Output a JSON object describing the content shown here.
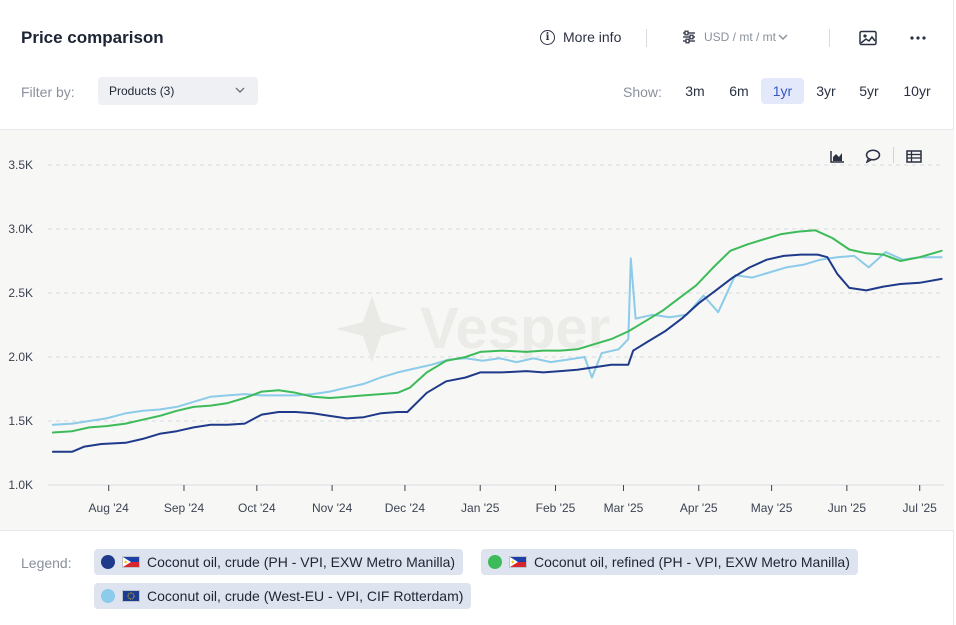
{
  "header": {
    "title": "Price comparison",
    "more_info_label": "More info",
    "units_label": "USD / mt / mt"
  },
  "filters": {
    "filter_label": "Filter by:",
    "products_value": "Products (3)",
    "show_label": "Show:",
    "ranges": [
      "3m",
      "6m",
      "1yr",
      "3yr",
      "5yr",
      "10yr"
    ],
    "active_range": "1yr"
  },
  "watermark": "Vesper",
  "legend": {
    "label": "Legend:",
    "items": [
      {
        "name": "Coconut oil, crude (PH - VPI, EXW Metro Manilla)",
        "color": "#1f3a8a",
        "flag": "ph-flag"
      },
      {
        "name": "Coconut oil, refined (PH - VPI, EXW Metro Manilla)",
        "color": "#3dbb5a",
        "flag": "ph-flag"
      },
      {
        "name": "Coconut oil, crude (West-EU - VPI, CIF Rotterdam)",
        "color": "#8ccbea",
        "flag": "eu-flag"
      }
    ]
  },
  "chart_data": {
    "type": "line",
    "x_ticks": [
      "Aug '24",
      "Sep '24",
      "Oct '24",
      "Nov '24",
      "Dec '24",
      "Jan '25",
      "Feb '25",
      "Mar '25",
      "Apr '25",
      "May '25",
      "Jun '25",
      "Jul '25"
    ],
    "y_ticks": [
      "1.0K",
      "1.5K",
      "2.0K",
      "2.5K",
      "3.0K",
      "3.5K"
    ],
    "ylim": [
      1000,
      3500
    ],
    "xlim": [
      "2024-07-07",
      "2025-07-11"
    ],
    "grid": "horizontal dashed",
    "series": [
      {
        "name": "Coconut oil, crude (PH - VPI, EXW Metro Manilla)",
        "color": "#1f3a8a",
        "points": [
          [
            "2024-07-09",
            1260
          ],
          [
            "2024-07-17",
            1260
          ],
          [
            "2024-07-22",
            1300
          ],
          [
            "2024-07-29",
            1320
          ],
          [
            "2024-08-08",
            1330
          ],
          [
            "2024-08-15",
            1360
          ],
          [
            "2024-08-22",
            1400
          ],
          [
            "2024-08-29",
            1420
          ],
          [
            "2024-09-05",
            1450
          ],
          [
            "2024-09-12",
            1470
          ],
          [
            "2024-09-19",
            1470
          ],
          [
            "2024-09-26",
            1480
          ],
          [
            "2024-10-03",
            1550
          ],
          [
            "2024-10-10",
            1570
          ],
          [
            "2024-10-17",
            1570
          ],
          [
            "2024-10-24",
            1560
          ],
          [
            "2024-10-31",
            1540
          ],
          [
            "2024-11-07",
            1520
          ],
          [
            "2024-11-14",
            1530
          ],
          [
            "2024-11-21",
            1560
          ],
          [
            "2024-11-28",
            1570
          ],
          [
            "2024-12-02",
            1570
          ],
          [
            "2024-12-10",
            1720
          ],
          [
            "2024-12-18",
            1810
          ],
          [
            "2024-12-26",
            1840
          ],
          [
            "2025-01-01",
            1880
          ],
          [
            "2025-01-10",
            1880
          ],
          [
            "2025-01-20",
            1890
          ],
          [
            "2025-01-27",
            1880
          ],
          [
            "2025-02-03",
            1890
          ],
          [
            "2025-02-10",
            1900
          ],
          [
            "2025-02-17",
            1920
          ],
          [
            "2025-02-24",
            1940
          ],
          [
            "2025-03-03",
            1940
          ],
          [
            "2025-03-05",
            2050
          ],
          [
            "2025-03-11",
            2120
          ],
          [
            "2025-03-18",
            2200
          ],
          [
            "2025-03-25",
            2300
          ],
          [
            "2025-04-01",
            2420
          ],
          [
            "2025-04-08",
            2520
          ],
          [
            "2025-04-15",
            2620
          ],
          [
            "2025-04-22",
            2700
          ],
          [
            "2025-04-29",
            2760
          ],
          [
            "2025-05-06",
            2790
          ],
          [
            "2025-05-13",
            2800
          ],
          [
            "2025-05-20",
            2800
          ],
          [
            "2025-05-24",
            2780
          ],
          [
            "2025-05-28",
            2650
          ],
          [
            "2025-06-02",
            2540
          ],
          [
            "2025-06-09",
            2520
          ],
          [
            "2025-06-16",
            2550
          ],
          [
            "2025-06-23",
            2570
          ],
          [
            "2025-07-01",
            2580
          ],
          [
            "2025-07-10",
            2610
          ]
        ]
      },
      {
        "name": "Coconut oil, refined (PH - VPI, EXW Metro Manilla)",
        "color": "#3dbb5a",
        "points": [
          [
            "2024-07-09",
            1410
          ],
          [
            "2024-07-17",
            1420
          ],
          [
            "2024-07-24",
            1450
          ],
          [
            "2024-07-31",
            1460
          ],
          [
            "2024-08-08",
            1480
          ],
          [
            "2024-08-15",
            1510
          ],
          [
            "2024-08-22",
            1540
          ],
          [
            "2024-08-29",
            1580
          ],
          [
            "2024-09-05",
            1610
          ],
          [
            "2024-09-12",
            1620
          ],
          [
            "2024-09-19",
            1640
          ],
          [
            "2024-09-26",
            1680
          ],
          [
            "2024-10-03",
            1730
          ],
          [
            "2024-10-10",
            1740
          ],
          [
            "2024-10-17",
            1720
          ],
          [
            "2024-10-24",
            1690
          ],
          [
            "2024-10-31",
            1680
          ],
          [
            "2024-11-07",
            1690
          ],
          [
            "2024-11-14",
            1700
          ],
          [
            "2024-11-21",
            1710
          ],
          [
            "2024-11-28",
            1720
          ],
          [
            "2024-12-03",
            1760
          ],
          [
            "2024-12-10",
            1880
          ],
          [
            "2024-12-18",
            1970
          ],
          [
            "2024-12-26",
            2000
          ],
          [
            "2025-01-01",
            2040
          ],
          [
            "2025-01-10",
            2050
          ],
          [
            "2025-01-20",
            2040
          ],
          [
            "2025-01-27",
            2050
          ],
          [
            "2025-02-03",
            2050
          ],
          [
            "2025-02-10",
            2060
          ],
          [
            "2025-02-17",
            2100
          ],
          [
            "2025-02-24",
            2140
          ],
          [
            "2025-03-03",
            2200
          ],
          [
            "2025-03-10",
            2280
          ],
          [
            "2025-03-17",
            2360
          ],
          [
            "2025-03-24",
            2460
          ],
          [
            "2025-03-31",
            2560
          ],
          [
            "2025-04-07",
            2700
          ],
          [
            "2025-04-14",
            2830
          ],
          [
            "2025-04-21",
            2880
          ],
          [
            "2025-04-28",
            2920
          ],
          [
            "2025-05-05",
            2960
          ],
          [
            "2025-05-12",
            2980
          ],
          [
            "2025-05-19",
            2990
          ],
          [
            "2025-05-26",
            2930
          ],
          [
            "2025-06-02",
            2840
          ],
          [
            "2025-06-09",
            2810
          ],
          [
            "2025-06-16",
            2800
          ],
          [
            "2025-06-23",
            2750
          ],
          [
            "2025-07-01",
            2780
          ],
          [
            "2025-07-10",
            2830
          ]
        ]
      },
      {
        "name": "Coconut oil, crude (West-EU - VPI, CIF Rotterdam)",
        "color": "#8ccbea",
        "points": [
          [
            "2024-07-09",
            1470
          ],
          [
            "2024-07-17",
            1480
          ],
          [
            "2024-07-24",
            1500
          ],
          [
            "2024-07-31",
            1520
          ],
          [
            "2024-08-08",
            1560
          ],
          [
            "2024-08-15",
            1580
          ],
          [
            "2024-08-22",
            1590
          ],
          [
            "2024-08-29",
            1610
          ],
          [
            "2024-09-05",
            1650
          ],
          [
            "2024-09-12",
            1690
          ],
          [
            "2024-09-19",
            1700
          ],
          [
            "2024-09-26",
            1710
          ],
          [
            "2024-10-03",
            1700
          ],
          [
            "2024-10-10",
            1700
          ],
          [
            "2024-10-17",
            1700
          ],
          [
            "2024-10-24",
            1710
          ],
          [
            "2024-10-31",
            1730
          ],
          [
            "2024-11-07",
            1760
          ],
          [
            "2024-11-14",
            1790
          ],
          [
            "2024-11-21",
            1840
          ],
          [
            "2024-11-28",
            1880
          ],
          [
            "2024-12-05",
            1910
          ],
          [
            "2024-12-12",
            1940
          ],
          [
            "2024-12-19",
            1980
          ],
          [
            "2024-12-26",
            1990
          ],
          [
            "2025-01-02",
            1970
          ],
          [
            "2025-01-09",
            1990
          ],
          [
            "2025-01-16",
            1960
          ],
          [
            "2025-01-23",
            1990
          ],
          [
            "2025-01-30",
            1960
          ],
          [
            "2025-02-06",
            1980
          ],
          [
            "2025-02-13",
            2000
          ],
          [
            "2025-02-16",
            1840
          ],
          [
            "2025-02-20",
            2030
          ],
          [
            "2025-02-27",
            2060
          ],
          [
            "2025-03-03",
            2140
          ],
          [
            "2025-03-04",
            2770
          ],
          [
            "2025-03-06",
            2300
          ],
          [
            "2025-03-13",
            2330
          ],
          [
            "2025-03-20",
            2310
          ],
          [
            "2025-03-27",
            2330
          ],
          [
            "2025-04-03",
            2480
          ],
          [
            "2025-04-09",
            2350
          ],
          [
            "2025-04-16",
            2640
          ],
          [
            "2025-04-23",
            2620
          ],
          [
            "2025-04-30",
            2660
          ],
          [
            "2025-05-07",
            2700
          ],
          [
            "2025-05-14",
            2720
          ],
          [
            "2025-05-21",
            2760
          ],
          [
            "2025-05-28",
            2780
          ],
          [
            "2025-06-04",
            2790
          ],
          [
            "2025-06-10",
            2700
          ],
          [
            "2025-06-17",
            2820
          ],
          [
            "2025-06-24",
            2760
          ],
          [
            "2025-07-01",
            2780
          ],
          [
            "2025-07-10",
            2780
          ]
        ]
      }
    ]
  }
}
